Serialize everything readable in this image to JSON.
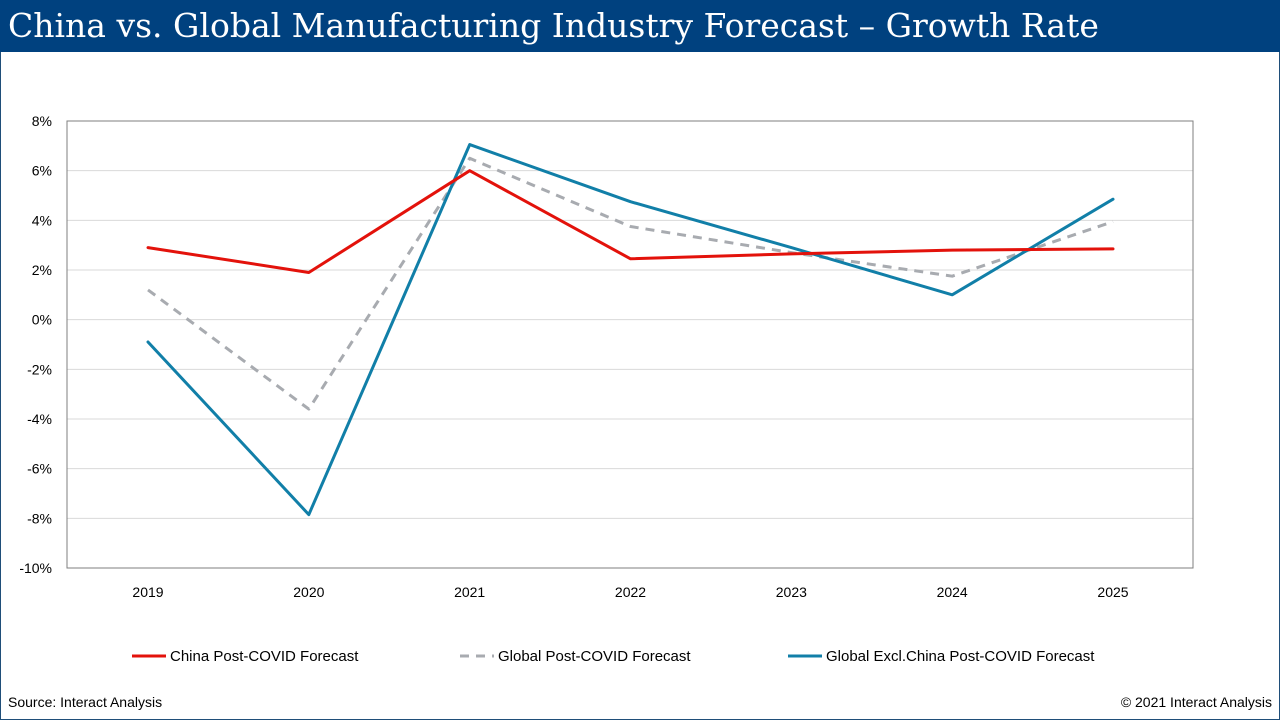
{
  "title": "China vs. Global Manufacturing Industry Forecast – Growth Rate",
  "footer": {
    "source": "Source: Interact Analysis",
    "copyright": "© 2021 Interact Analysis"
  },
  "chart_data": {
    "type": "line",
    "title": "China vs. Global Manufacturing Industry Forecast – Growth Rate",
    "xlabel": "",
    "ylabel": "",
    "categories": [
      "2019",
      "2020",
      "2021",
      "2022",
      "2023",
      "2024",
      "2025"
    ],
    "ylim": [
      -10,
      8
    ],
    "yticks": [
      8,
      6,
      4,
      2,
      0,
      -2,
      -4,
      -6,
      -8,
      -10
    ],
    "ytick_labels": [
      "8%",
      "6%",
      "4%",
      "2%",
      "0%",
      "-2%",
      "-4%",
      "-6%",
      "-8%",
      "-10%"
    ],
    "grid": true,
    "legend_position": "bottom",
    "series": [
      {
        "name": "China Post-COVID Forecast",
        "color": "#e3120b",
        "dashed": false,
        "values": [
          2.9,
          1.9,
          6.0,
          2.45,
          2.65,
          2.8,
          2.85
        ]
      },
      {
        "name": "Global Post-COVID Forecast",
        "color": "#a8abb0",
        "dashed": true,
        "values": [
          1.2,
          -3.6,
          6.5,
          3.75,
          2.7,
          1.75,
          3.95
        ]
      },
      {
        "name": "Global Excl.China Post-COVID Forecast",
        "color": "#117fa8",
        "dashed": false,
        "values": [
          -0.9,
          -7.85,
          7.05,
          4.75,
          2.9,
          1.0,
          4.85
        ]
      }
    ]
  }
}
